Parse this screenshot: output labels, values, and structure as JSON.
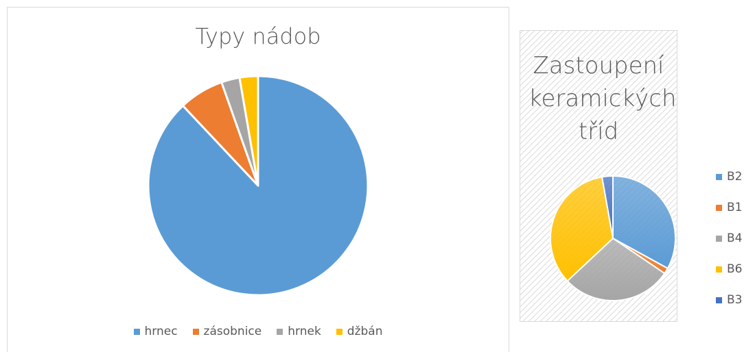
{
  "chart_data": [
    {
      "type": "pie",
      "title": "Typy nádob",
      "categories": [
        "hrnec",
        "zásobnice",
        "hrnek",
        "džbán"
      ],
      "values": [
        88,
        6.6,
        2.7,
        2.7
      ],
      "colors": [
        "#5b9bd5",
        "#ed7d31",
        "#a5a5a5",
        "#ffc000"
      ],
      "legend": "bottom"
    },
    {
      "type": "pie",
      "title": "Zastoupení keramických tříd",
      "categories": [
        "B2",
        "B1",
        "B4",
        "B6",
        "B3"
      ],
      "values": [
        33,
        1.5,
        28.5,
        34.2,
        2.8
      ],
      "colors": [
        "#5b9bd5",
        "#ed7d31",
        "#a5a5a5",
        "#ffc000",
        "#4472c4"
      ],
      "legend": "right"
    }
  ]
}
